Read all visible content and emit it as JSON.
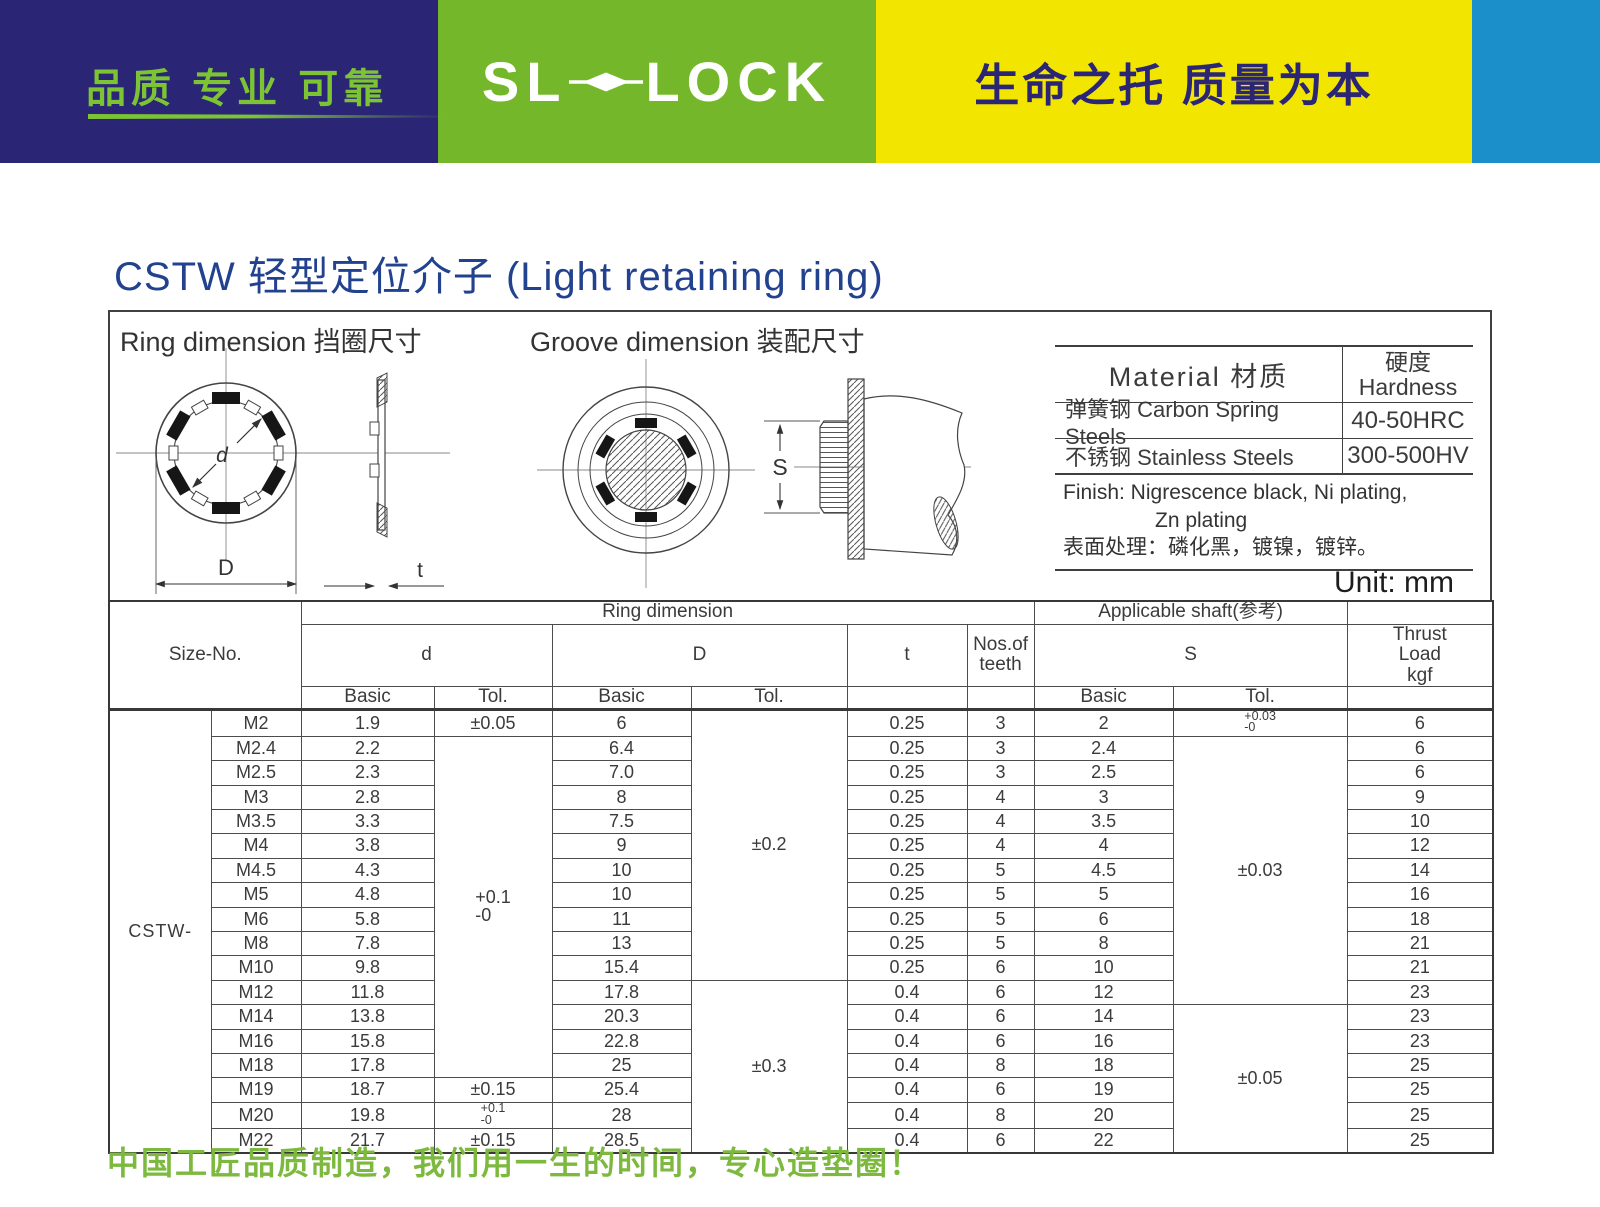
{
  "header": {
    "left_slogan": "品质 专业 可靠",
    "logo_sl": "SL",
    "logo_lock": "LOCK",
    "right_slogan": "生命之托 质量为本"
  },
  "title": "CSTW 轻型定位介子 (Light retaining ring)",
  "section_labels": {
    "ring": "Ring dimension 挡圈尺寸",
    "groove": "Groove dimension 装配尺寸",
    "unit": "Unit: mm"
  },
  "diagram_dims": {
    "d": "d",
    "D": "D",
    "t": "t",
    "S": "S"
  },
  "material_table": {
    "col1_header": "Material  材质",
    "col2_header_line1": "硬度",
    "col2_header_line2": "Hardness",
    "rows": [
      {
        "material": "弹簧钢 Carbon Spring Steels",
        "hardness": "40-50HRC"
      },
      {
        "material": "不锈钢 Stainless Steels",
        "hardness": "300-500HV"
      }
    ],
    "finish_line1": "Finish: Nigrescence black, Ni plating,",
    "finish_line2": "Zn plating",
    "finish_line3": "表面处理：磷化黑，镀镍，镀锌。"
  },
  "main_table": {
    "labels": {
      "size_no": "Size-No.",
      "ring_dimension": "Ring dimension",
      "applicable_shaft": "Applicable shaft(参考)",
      "thrust_load": "Thrust\nLoad\nkgf",
      "d": "d",
      "D": "D",
      "t": "t",
      "teeth": "Nos.of\nteeth",
      "s": "S",
      "basic": "Basic",
      "tol": "Tol."
    },
    "prefix": "CSTW-",
    "rows": [
      {
        "size": "M2",
        "d": "1.9",
        "d_tol": {
          "v": "±0.05"
        },
        "D": "6",
        "D_tol": {
          "v": "±0.2",
          "rs": 11
        },
        "t": "0.25",
        "teeth": "3",
        "s": "2",
        "s_tol": {
          "v": "+0.03\n-0",
          "sm": true
        },
        "load": "6"
      },
      {
        "size": "M2.4",
        "d": "2.2",
        "d_tol": {
          "v": "+0.1\n-0",
          "rs": 14
        },
        "D": "6.4",
        "t": "0.25",
        "teeth": "3",
        "s": "2.4",
        "s_tol": {
          "v": "±0.03",
          "rs": 11
        },
        "load": "6"
      },
      {
        "size": "M2.5",
        "d": "2.3",
        "D": "7.0",
        "t": "0.25",
        "teeth": "3",
        "s": "2.5",
        "load": "6"
      },
      {
        "size": "M3",
        "d": "2.8",
        "D": "8",
        "t": "0.25",
        "teeth": "4",
        "s": "3",
        "load": "9"
      },
      {
        "size": "M3.5",
        "d": "3.3",
        "D": "7.5",
        "t": "0.25",
        "teeth": "4",
        "s": "3.5",
        "load": "10"
      },
      {
        "size": "M4",
        "d": "3.8",
        "D": "9",
        "t": "0.25",
        "teeth": "4",
        "s": "4",
        "load": "12"
      },
      {
        "size": "M4.5",
        "d": "4.3",
        "D": "10",
        "t": "0.25",
        "teeth": "5",
        "s": "4.5",
        "load": "14"
      },
      {
        "size": "M5",
        "d": "4.8",
        "D": "10",
        "t": "0.25",
        "teeth": "5",
        "s": "5",
        "load": "16"
      },
      {
        "size": "M6",
        "d": "5.8",
        "D": "11",
        "t": "0.25",
        "teeth": "5",
        "s": "6",
        "load": "18"
      },
      {
        "size": "M8",
        "d": "7.8",
        "D": "13",
        "t": "0.25",
        "teeth": "5",
        "s": "8",
        "load": "21"
      },
      {
        "size": "M10",
        "d": "9.8",
        "D": "15.4",
        "t": "0.25",
        "teeth": "6",
        "s": "10",
        "load": "21"
      },
      {
        "size": "M12",
        "d": "11.8",
        "D": "17.8",
        "D_tol": {
          "v": "±0.3",
          "rs": 7
        },
        "t": "0.4",
        "teeth": "6",
        "s": "12",
        "load": "23"
      },
      {
        "size": "M14",
        "d": "13.8",
        "D": "20.3",
        "t": "0.4",
        "teeth": "6",
        "s": "14",
        "s_tol": {
          "v": "±0.05",
          "rs": 6
        },
        "load": "23"
      },
      {
        "size": "M16",
        "d": "15.8",
        "D": "22.8",
        "t": "0.4",
        "teeth": "6",
        "s": "16",
        "load": "23"
      },
      {
        "size": "M18",
        "d": "17.8",
        "D": "25",
        "t": "0.4",
        "teeth": "8",
        "s": "18",
        "load": "25"
      },
      {
        "size": "M19",
        "d": "18.7",
        "d_tol": {
          "v": "±0.15"
        },
        "D": "25.4",
        "t": "0.4",
        "teeth": "6",
        "s": "19",
        "load": "25"
      },
      {
        "size": "M20",
        "d": "19.8",
        "d_tol": {
          "v": "+0.1\n-0",
          "sm": true
        },
        "D": "28",
        "t": "0.4",
        "teeth": "8",
        "s": "20",
        "load": "25"
      },
      {
        "size": "M22",
        "d": "21.7",
        "d_tol": {
          "v": "±0.15"
        },
        "D": "28.5",
        "t": "0.4",
        "teeth": "6",
        "s": "22",
        "load": "25"
      }
    ]
  },
  "footer": "中国工匠品质制造，我们用一生的时间，专心造垫圈！"
}
